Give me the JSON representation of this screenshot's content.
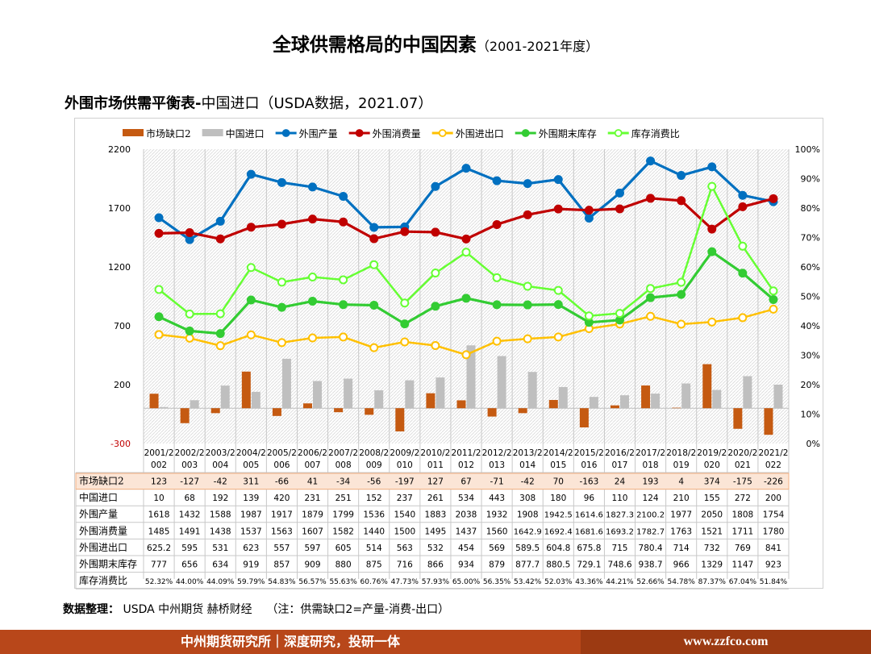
{
  "header": {
    "title_main": "全球供需格局的中国因素",
    "title_suffix": "（2001-2021年度）",
    "subtitle_bold": "外围市场供需平衡表-",
    "subtitle_rest": "中国进口（USDA数据，2021.07）"
  },
  "chart_data": {
    "type": "bar+line",
    "left_axis": {
      "min": -300,
      "max": 2200,
      "ticks": [
        2200,
        1700,
        1200,
        700,
        200,
        -300
      ]
    },
    "right_axis": {
      "min": 0,
      "max": 100,
      "ticks": [
        "100%",
        "90%",
        "80%",
        "70%",
        "60%",
        "50%",
        "40%",
        "30%",
        "20%",
        "10%",
        "0%"
      ]
    },
    "categories_top": [
      "2001/2",
      "2002/2",
      "2003/2",
      "2004/2",
      "2005/2",
      "2006/2",
      "2007/2",
      "2008/2",
      "2009/2",
      "2010/2",
      "2011/2",
      "2012/2",
      "2013/2",
      "2014/2",
      "2015/2",
      "2016/2",
      "2017/2",
      "2018/2",
      "2019/2",
      "2020/2",
      "2021/2"
    ],
    "categories_bottom": [
      "002",
      "003",
      "004",
      "005",
      "006",
      "007",
      "008",
      "009",
      "010",
      "011",
      "012",
      "013",
      "014",
      "015",
      "016",
      "017",
      "018",
      "019",
      "020",
      "021",
      "022"
    ],
    "series": [
      {
        "name": "市场缺口2",
        "kind": "bar",
        "axis": "left",
        "color": "#c55a11",
        "values": [
          123,
          -127,
          -42,
          311,
          -66,
          41,
          -34,
          -56,
          -197,
          127,
          67,
          -71,
          -42,
          70,
          -163,
          24,
          193,
          4,
          374,
          -175,
          -226
        ],
        "display": [
          "123",
          "-127",
          "-42",
          "311",
          "-66",
          "41",
          "-34",
          "-56",
          "-197",
          "127",
          "67",
          "-71",
          "-42",
          "70",
          "-163",
          "24",
          "193",
          "4",
          "374",
          "-175",
          "-226"
        ]
      },
      {
        "name": "中国进口",
        "kind": "bar",
        "axis": "left",
        "color": "#bfbfbf",
        "values": [
          10,
          68,
          192,
          139,
          420,
          231,
          251,
          152,
          237,
          261,
          534,
          443,
          308,
          180,
          96,
          110,
          124,
          210,
          155,
          272,
          200
        ],
        "display": [
          "10",
          "68",
          "192",
          "139",
          "420",
          "231",
          "251",
          "152",
          "237",
          "261",
          "534",
          "443",
          "308",
          "180",
          "96",
          "110",
          "124",
          "210",
          "155",
          "272",
          "200"
        ]
      },
      {
        "name": "外围产量",
        "kind": "line",
        "axis": "left",
        "color": "#0070c0",
        "marker": "filled",
        "values": [
          1618,
          1432,
          1588,
          1987,
          1917,
          1879,
          1799,
          1536,
          1540,
          1883,
          2038,
          1932,
          1908,
          1942.5,
          1614.6,
          1827.3,
          2100.2,
          1977,
          2050,
          1808,
          1754
        ],
        "display": [
          "1618",
          "1432",
          "1588",
          "1987",
          "1917",
          "1879",
          "1799",
          "1536",
          "1540",
          "1883",
          "2038",
          "1932",
          "1908",
          "1942.5",
          "1614.6",
          "1827.3",
          "2100.2",
          "1977",
          "2050",
          "1808",
          "1754"
        ]
      },
      {
        "name": "外围消费量",
        "kind": "line",
        "axis": "left",
        "color": "#c00000",
        "marker": "filled",
        "values": [
          1485,
          1491,
          1438,
          1537,
          1563,
          1607,
          1582,
          1440,
          1500,
          1495,
          1437,
          1560,
          1642.9,
          1692.4,
          1681.6,
          1693.2,
          1782.7,
          1763,
          1521,
          1711,
          1780
        ],
        "display": [
          "1485",
          "1491",
          "1438",
          "1537",
          "1563",
          "1607",
          "1582",
          "1440",
          "1500",
          "1495",
          "1437",
          "1560",
          "1642.9",
          "1692.4",
          "1681.6",
          "1693.2",
          "1782.7",
          "1763",
          "1521",
          "1711",
          "1780"
        ]
      },
      {
        "name": "外围进出口",
        "kind": "line",
        "axis": "left",
        "color": "#ffc000",
        "marker": "hollow",
        "values": [
          625.2,
          595,
          531,
          623,
          557,
          597,
          605,
          514,
          563,
          532,
          454,
          569,
          589.5,
          604.8,
          675.8,
          715,
          780.4,
          714,
          732,
          769,
          841
        ],
        "display": [
          "625.2",
          "595",
          "531",
          "623",
          "557",
          "597",
          "605",
          "514",
          "563",
          "532",
          "454",
          "569",
          "589.5",
          "604.8",
          "675.8",
          "715",
          "780.4",
          "714",
          "732",
          "769",
          "841"
        ]
      },
      {
        "name": "外围期末库存",
        "kind": "line",
        "axis": "left",
        "color": "#33cc33",
        "marker": "filled",
        "values": [
          777,
          656,
          634,
          919,
          857,
          909,
          880,
          875,
          716,
          866,
          934,
          879,
          877.7,
          880.5,
          729.1,
          748.6,
          938.7,
          966,
          1329,
          1147,
          923
        ],
        "display": [
          "777",
          "656",
          "634",
          "919",
          "857",
          "909",
          "880",
          "875",
          "716",
          "866",
          "934",
          "879",
          "877.7",
          "880.5",
          "729.1",
          "748.6",
          "938.7",
          "966",
          "1329",
          "1147",
          "923"
        ]
      },
      {
        "name": "库存消费比",
        "kind": "line",
        "axis": "right",
        "color": "#66ff33",
        "marker": "hollow",
        "values": [
          52.32,
          44.0,
          44.09,
          59.79,
          54.83,
          56.57,
          55.63,
          60.76,
          47.73,
          57.93,
          65.0,
          56.35,
          53.42,
          52.03,
          43.36,
          44.21,
          52.66,
          54.78,
          87.37,
          67.04,
          51.84
        ],
        "display": [
          "52.32%",
          "44.00%",
          "44.09%",
          "59.79%",
          "54.83%",
          "56.57%",
          "55.63%",
          "60.76%",
          "47.73%",
          "57.93%",
          "65.00%",
          "56.35%",
          "53.42%",
          "52.03%",
          "43.36%",
          "44.21%",
          "52.66%",
          "54.78%",
          "87.37%",
          "67.04%",
          "51.84%"
        ]
      }
    ]
  },
  "footer": {
    "source_label": "数据整理：",
    "source_text": "USDA  中州期货  赫桥财经",
    "note": "（注：供需缺口2=产量-消费-出口）",
    "bar_left": "中州期货研究所｜深度研究，投研一体",
    "bar_right": "www.zzfco.com"
  }
}
